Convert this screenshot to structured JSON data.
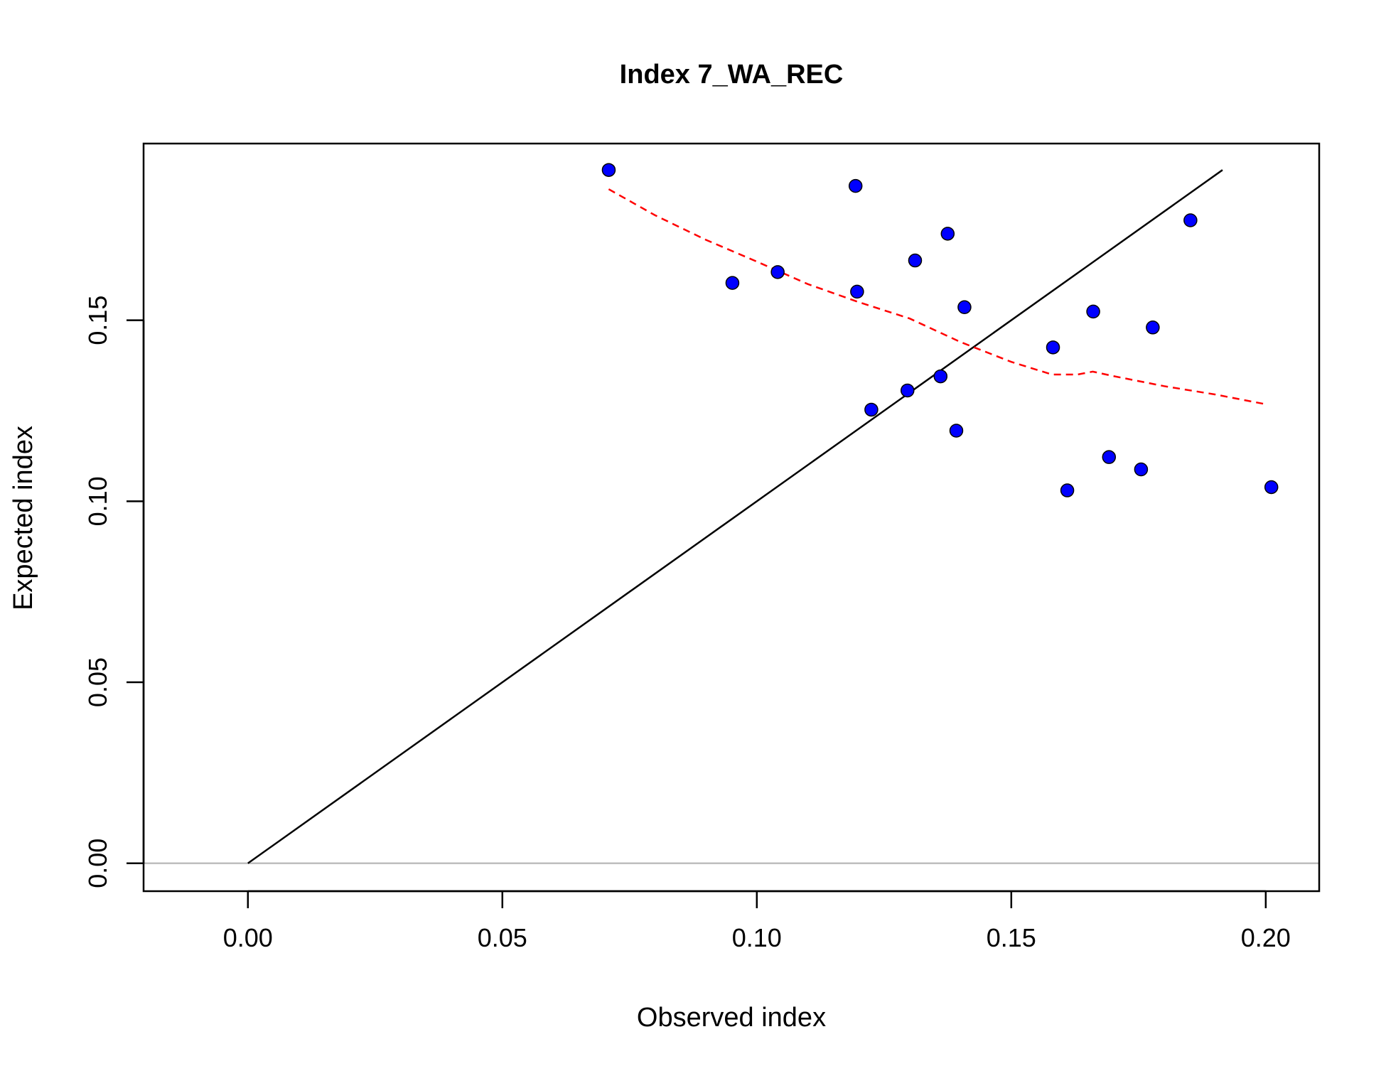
{
  "chart_data": {
    "type": "scatter",
    "title": "Index 7_WA_REC",
    "xlabel": "Observed index",
    "ylabel": "Expected index",
    "xlim": [
      -0.0205,
      0.2105
    ],
    "ylim": [
      -0.0077,
      0.1988
    ],
    "x_ticks": [
      0.0,
      0.05,
      0.1,
      0.15,
      0.2
    ],
    "x_tick_labels": [
      "0.00",
      "0.05",
      "0.10",
      "0.15",
      "0.20"
    ],
    "y_ticks": [
      0.0,
      0.05,
      0.1,
      0.15
    ],
    "y_tick_labels": [
      "0.00",
      "0.05",
      "0.10",
      "0.15"
    ],
    "grid": false,
    "points": [
      {
        "x": 0.0709,
        "y": 0.1915
      },
      {
        "x": 0.0952,
        "y": 0.1603
      },
      {
        "x": 0.1041,
        "y": 0.1633
      },
      {
        "x": 0.1194,
        "y": 0.1871
      },
      {
        "x": 0.1197,
        "y": 0.1579
      },
      {
        "x": 0.1225,
        "y": 0.1253
      },
      {
        "x": 0.1296,
        "y": 0.1306
      },
      {
        "x": 0.1311,
        "y": 0.1665
      },
      {
        "x": 0.1361,
        "y": 0.1345
      },
      {
        "x": 0.1375,
        "y": 0.1739
      },
      {
        "x": 0.1392,
        "y": 0.1195
      },
      {
        "x": 0.1408,
        "y": 0.1536
      },
      {
        "x": 0.1582,
        "y": 0.1425
      },
      {
        "x": 0.161,
        "y": 0.103
      },
      {
        "x": 0.1661,
        "y": 0.1524
      },
      {
        "x": 0.1692,
        "y": 0.1122
      },
      {
        "x": 0.1755,
        "y": 0.1088
      },
      {
        "x": 0.1778,
        "y": 0.148
      },
      {
        "x": 0.1852,
        "y": 0.1776
      },
      {
        "x": 0.2011,
        "y": 0.1039
      }
    ],
    "identity_line": [
      [
        0.0,
        0.0
      ],
      [
        0.1915,
        0.1915
      ]
    ],
    "smoother": [
      [
        0.0709,
        0.1862
      ],
      [
        0.08,
        0.179
      ],
      [
        0.09,
        0.1722
      ],
      [
        0.1,
        0.1662
      ],
      [
        0.11,
        0.16
      ],
      [
        0.12,
        0.155
      ],
      [
        0.13,
        0.1505
      ],
      [
        0.14,
        0.144
      ],
      [
        0.15,
        0.1385
      ],
      [
        0.158,
        0.135
      ],
      [
        0.163,
        0.135
      ],
      [
        0.166,
        0.1358
      ],
      [
        0.17,
        0.1346
      ],
      [
        0.18,
        0.1318
      ],
      [
        0.19,
        0.1295
      ],
      [
        0.2,
        0.1268
      ]
    ],
    "zero_line_y": 0.0,
    "colors": {
      "points": "#0000ff",
      "identity_line": "#000000",
      "smoother": "#ff0000",
      "zero_line": "#bebebe"
    }
  }
}
